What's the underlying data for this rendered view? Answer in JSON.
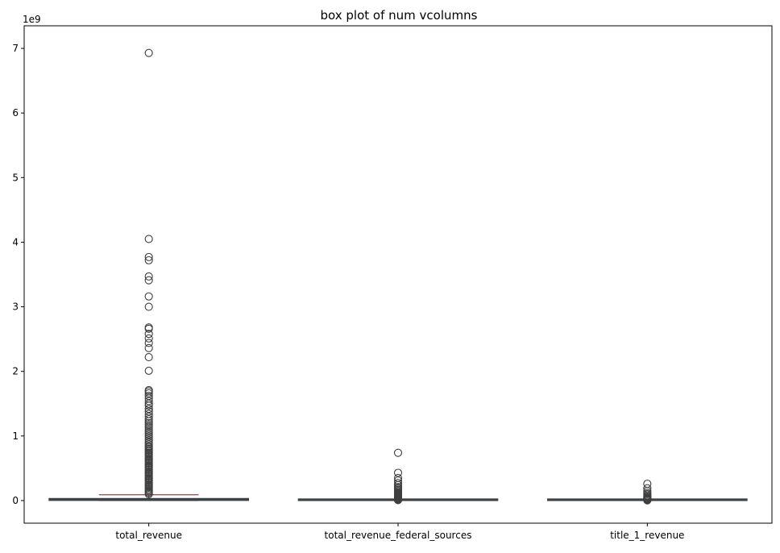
{
  "chart_data": {
    "type": "box",
    "title": "box plot of num vcolumns",
    "xlabel": "",
    "ylabel": "",
    "offset_text": "1e9",
    "scale": 1000000000,
    "ylim": [
      -0.35,
      7.35
    ],
    "yticks": [
      0,
      1,
      2,
      3,
      4,
      5,
      6,
      7
    ],
    "ytick_labels": [
      "0",
      "1",
      "2",
      "3",
      "4",
      "5",
      "6",
      "7"
    ],
    "grid": false,
    "box_fill": "#2e4a66",
    "line_color": "#3f3f3f",
    "median_color": "#8b4a4a",
    "categories": [
      "total_revenue",
      "total_revenue_federal_sources",
      "title_1_revenue"
    ],
    "boxes": [
      {
        "name": "total_revenue",
        "whislo": 0.0,
        "q1": 0.002,
        "median": 0.009,
        "q3": 0.032,
        "whishi": 0.09,
        "fliers": [
          6.93,
          4.05,
          3.77,
          3.72,
          3.47,
          3.41,
          3.16,
          3.0,
          2.68,
          2.66,
          2.58,
          2.51,
          2.44,
          2.36,
          2.22,
          2.01,
          1.71,
          1.69,
          1.66,
          1.62,
          1.58,
          1.54,
          1.5,
          1.47,
          1.42,
          1.38,
          1.34,
          1.3,
          1.26,
          1.23,
          1.2,
          1.17,
          1.14,
          1.11,
          1.08,
          1.05,
          1.02,
          0.99,
          0.96,
          0.93,
          0.9,
          0.87,
          0.84,
          0.82,
          0.8,
          0.78,
          0.76,
          0.74,
          0.72,
          0.7,
          0.68,
          0.66,
          0.64,
          0.62,
          0.6,
          0.58,
          0.56,
          0.54,
          0.52,
          0.5,
          0.48,
          0.46,
          0.44,
          0.42,
          0.4,
          0.38,
          0.36,
          0.34,
          0.32,
          0.3,
          0.28,
          0.26,
          0.24,
          0.22,
          0.2,
          0.18,
          0.16,
          0.14,
          0.12,
          0.1
        ]
      },
      {
        "name": "total_revenue_federal_sources",
        "whislo": 0.0,
        "q1": 0.0002,
        "median": 0.0007,
        "q3": 0.0025,
        "whishi": 0.006,
        "fliers": [
          0.74,
          0.43,
          0.35,
          0.31,
          0.27,
          0.24,
          0.21,
          0.19,
          0.17,
          0.15,
          0.13,
          0.12,
          0.11,
          0.1,
          0.09,
          0.08,
          0.07,
          0.06,
          0.05,
          0.04,
          0.03,
          0.02,
          0.015,
          0.01,
          0.008
        ]
      },
      {
        "name": "title_1_revenue",
        "whislo": 0.0,
        "q1": 0.0001,
        "median": 0.0003,
        "q3": 0.0009,
        "whishi": 0.002,
        "fliers": [
          0.26,
          0.19,
          0.15,
          0.12,
          0.1,
          0.08,
          0.065,
          0.05,
          0.04,
          0.03,
          0.022,
          0.015,
          0.01,
          0.006,
          0.003
        ]
      }
    ]
  }
}
